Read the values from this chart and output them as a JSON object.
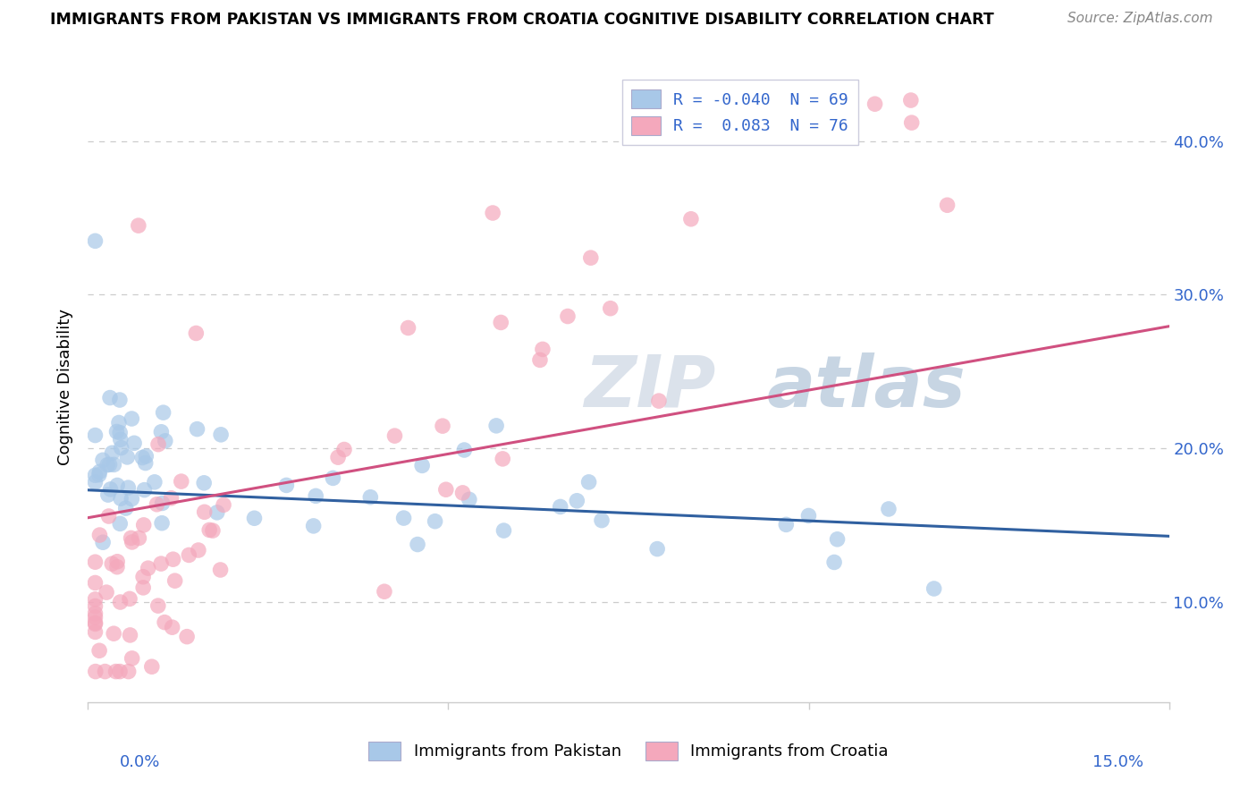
{
  "title": "IMMIGRANTS FROM PAKISTAN VS IMMIGRANTS FROM CROATIA COGNITIVE DISABILITY CORRELATION CHART",
  "source": "Source: ZipAtlas.com",
  "ylabel": "Cognitive Disability",
  "ytick_labels": [
    "10.0%",
    "20.0%",
    "30.0%",
    "40.0%"
  ],
  "yticks": [
    0.1,
    0.2,
    0.3,
    0.4
  ],
  "xlim": [
    0.0,
    0.15
  ],
  "ylim": [
    0.035,
    0.445
  ],
  "R_pakistan": -0.04,
  "N_pakistan": 69,
  "R_croatia": 0.083,
  "N_croatia": 76,
  "color_pakistan": "#a8c8e8",
  "color_croatia": "#f4a8bc",
  "line_color_pakistan": "#3060a0",
  "line_color_croatia": "#d05080",
  "legend_box_color": "#e8e8f0",
  "grid_color": "#cccccc",
  "spine_color": "#cccccc",
  "tick_label_color": "#3366cc",
  "watermark_text": "ZIPatlas",
  "watermark_color": "#d0d8e8",
  "legend_R_color": "#cc0000",
  "legend_N_color": "#3366cc",
  "legend_label_color": "#333333"
}
